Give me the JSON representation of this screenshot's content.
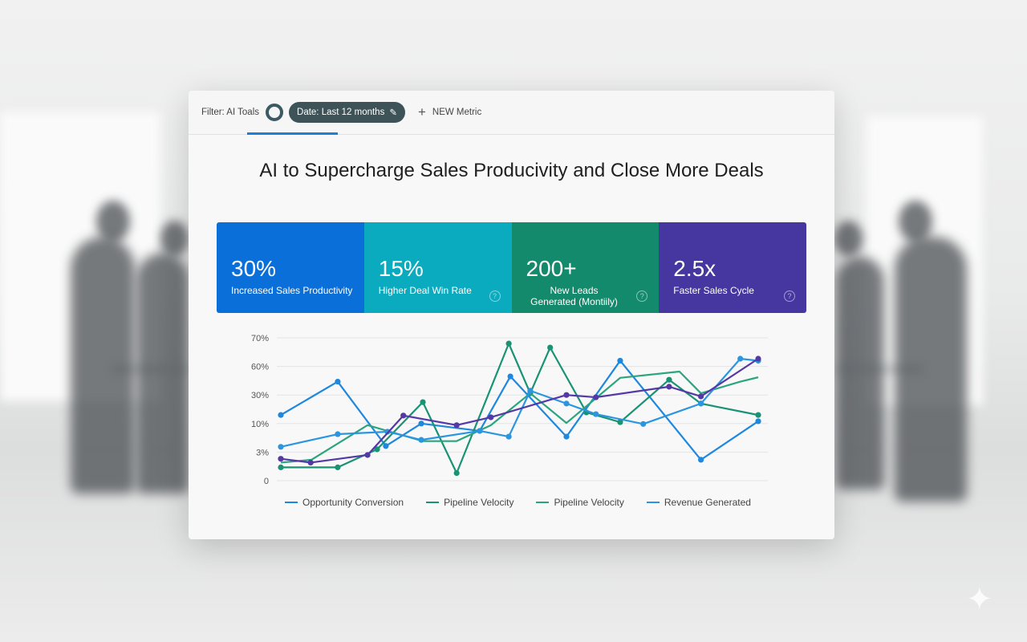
{
  "toolbar": {
    "filter_label": "Filter: AI Toals",
    "date_chip": "Date: Last 12 months",
    "new_metric": "NEW Metric",
    "icons": {
      "edit": "pencil-icon",
      "add": "plus-icon",
      "toggle": "ring-icon"
    }
  },
  "title": "AI to Supercharge Sales Producivity and Close More Deals",
  "kpis": [
    {
      "value": "30%",
      "label": "Increased Sales Productivity",
      "color": "#0b6fd9",
      "help": false
    },
    {
      "value": "15%",
      "label": "Higher Deal Win Rate",
      "color": "#0aaabf",
      "help": true
    },
    {
      "value": "200+",
      "label": "New Leads Generated (Montiily)",
      "color": "#138a6c",
      "help": true
    },
    {
      "value": "2.5x",
      "label": "Faster Sales Cycle",
      "color": "#4637a0",
      "help": true
    }
  ],
  "chart_data": {
    "type": "line",
    "title": "",
    "xlabel": "",
    "ylabel": "",
    "y_tick_labels": [
      "0",
      "3%",
      "10%",
      "30%",
      "60%",
      "70%"
    ],
    "y_tick_values": [
      0,
      3,
      10,
      30,
      60,
      70
    ],
    "xlim": [
      0,
      12
    ],
    "grid": true,
    "legend_position": "bottom",
    "series": [
      {
        "name": "Opportunity Conversion",
        "color": "#1e87de",
        "markers": true,
        "points": [
          [
            0,
            16
          ],
          [
            1.43,
            44
          ],
          [
            2.64,
            4.5
          ],
          [
            3.53,
            10
          ],
          [
            5,
            8.2
          ],
          [
            5.77,
            49.5
          ],
          [
            7.18,
            6.8
          ],
          [
            8.53,
            62
          ],
          [
            10.56,
            2.2
          ],
          [
            12,
            11.6
          ]
        ]
      },
      {
        "name": "Pipeline Velocity",
        "color": "#1a9274",
        "markers": true,
        "points": [
          [
            0,
            1.4
          ],
          [
            1.43,
            1.4
          ],
          [
            2.42,
            3.7
          ],
          [
            3.57,
            25
          ],
          [
            4.42,
            0.8
          ],
          [
            5.73,
            68
          ],
          [
            6.27,
            31.8
          ],
          [
            6.77,
            66.6
          ],
          [
            7.68,
            17.8
          ],
          [
            8.53,
            11
          ],
          [
            9.76,
            46
          ],
          [
            10.56,
            24
          ],
          [
            12,
            16
          ]
        ]
      },
      {
        "name": "Pipeline Velocity",
        "color": "#2aa57f",
        "markers": false,
        "points": [
          [
            0,
            1.9
          ],
          [
            0.77,
            2.2
          ],
          [
            2.18,
            9.6
          ],
          [
            3.57,
            5.7
          ],
          [
            4.42,
            5.7
          ],
          [
            5.28,
            9.6
          ],
          [
            6.27,
            31.8
          ],
          [
            7.18,
            10.4
          ],
          [
            8.53,
            48
          ],
          [
            10.02,
            54.6
          ],
          [
            10.56,
            31.8
          ],
          [
            11.55,
            44
          ],
          [
            12,
            48.6
          ]
        ]
      },
      {
        "name": "Revenue Generated",
        "color": "#2c95e0",
        "markers": true,
        "points": [
          [
            0,
            4.3
          ],
          [
            1.43,
            7.4
          ],
          [
            2.68,
            8
          ],
          [
            3.53,
            6
          ],
          [
            5,
            8.2
          ],
          [
            5.73,
            6.8
          ],
          [
            6.27,
            34.5
          ],
          [
            7.18,
            24
          ],
          [
            7.92,
            16.6
          ],
          [
            9.11,
            9.9
          ],
          [
            10.56,
            24
          ],
          [
            11.55,
            62.7
          ],
          [
            12,
            62
          ]
        ]
      },
      {
        "color": "#5438a6",
        "markers": true,
        "points": [
          [
            0,
            2.3
          ],
          [
            0.75,
            1.9
          ],
          [
            2.18,
            2.7
          ],
          [
            3.08,
            15.6
          ],
          [
            4.42,
            9.6
          ],
          [
            5.28,
            14.4
          ],
          [
            7.18,
            30
          ],
          [
            7.92,
            28.4
          ],
          [
            9.76,
            38.7
          ],
          [
            10.56,
            29
          ],
          [
            12,
            62.7
          ]
        ]
      }
    ]
  }
}
